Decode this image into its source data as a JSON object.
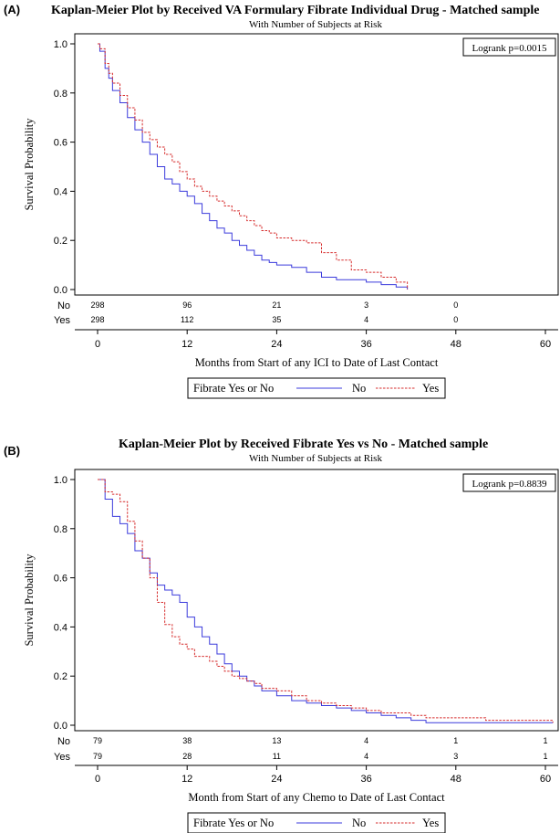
{
  "chart_data": [
    {
      "type": "line",
      "panel_label": "(A)",
      "title": "Kaplan-Meier Plot by Received VA Formulary Fibrate Individual Drug - Matched sample",
      "subtitle": "With Number of Subjects at Risk",
      "xlabel": "Months from Start of any ICI to Date of Last Contact",
      "ylabel": "Survival Probability",
      "xlim": [
        0,
        60
      ],
      "ylim": [
        0,
        1
      ],
      "xticks": [
        "0",
        "12",
        "24",
        "36",
        "48",
        "60"
      ],
      "yticks": [
        "0.0",
        "0.2",
        "0.4",
        "0.6",
        "0.8",
        "1.0"
      ],
      "annotation": "Logrank p=0.0015",
      "legend": {
        "title": "Fibrate Yes or No",
        "entries": [
          "No",
          "Yes"
        ]
      },
      "risk_table": {
        "rows": [
          {
            "label": "No",
            "values": [
              "298",
              "96",
              "21",
              "3",
              "0"
            ]
          },
          {
            "label": "Yes",
            "values": [
              "298",
              "112",
              "35",
              "4",
              "0"
            ]
          }
        ]
      },
      "series": [
        {
          "name": "No",
          "color": "#3b3bdc",
          "dash": "solid",
          "x": [
            0,
            0.3,
            1,
            1.5,
            2,
            3,
            4,
            5,
            6,
            7,
            8,
            9,
            10,
            11,
            12,
            13,
            14,
            15,
            16,
            17,
            18,
            19,
            20,
            21,
            22,
            23,
            24,
            26,
            28,
            30,
            32,
            34,
            36,
            38,
            40,
            41.5
          ],
          "y": [
            1.0,
            0.97,
            0.9,
            0.86,
            0.81,
            0.76,
            0.7,
            0.65,
            0.6,
            0.55,
            0.5,
            0.45,
            0.43,
            0.4,
            0.38,
            0.35,
            0.31,
            0.28,
            0.25,
            0.23,
            0.2,
            0.18,
            0.16,
            0.14,
            0.12,
            0.11,
            0.1,
            0.09,
            0.07,
            0.05,
            0.04,
            0.04,
            0.03,
            0.02,
            0.01,
            0.0
          ]
        },
        {
          "name": "Yes",
          "color": "#d62d2d",
          "dash": "dashed",
          "x": [
            0,
            0.3,
            1,
            1.5,
            2,
            3,
            4,
            5,
            6,
            7,
            8,
            9,
            10,
            11,
            12,
            13,
            14,
            15,
            16,
            17,
            18,
            19,
            20,
            21,
            22,
            23,
            24,
            26,
            28,
            30,
            32,
            34,
            36,
            38,
            40,
            41.5
          ],
          "y": [
            1.0,
            0.98,
            0.92,
            0.88,
            0.84,
            0.79,
            0.74,
            0.69,
            0.64,
            0.61,
            0.58,
            0.55,
            0.52,
            0.48,
            0.45,
            0.42,
            0.4,
            0.38,
            0.36,
            0.34,
            0.32,
            0.3,
            0.28,
            0.26,
            0.24,
            0.23,
            0.21,
            0.2,
            0.19,
            0.15,
            0.12,
            0.08,
            0.07,
            0.05,
            0.03,
            0.0
          ]
        }
      ]
    },
    {
      "type": "line",
      "panel_label": "(B)",
      "title": "Kaplan-Meier Plot by Received Fibrate Yes vs No - Matched sample",
      "subtitle": "With Number of Subjects at Risk",
      "xlabel": "Month from Start of any Chemo to Date of Last Contact",
      "ylabel": "Survival Probability",
      "xlim": [
        0,
        60
      ],
      "ylim": [
        0,
        1
      ],
      "xticks": [
        "0",
        "12",
        "24",
        "36",
        "48",
        "60"
      ],
      "yticks": [
        "0.0",
        "0.2",
        "0.4",
        "0.6",
        "0.8",
        "1.0"
      ],
      "annotation": "Logrank p=0.8839",
      "legend": {
        "title": "Fibrate Yes or No",
        "entries": [
          "No",
          "Yes"
        ]
      },
      "risk_table": {
        "rows": [
          {
            "label": "No",
            "values": [
              "79",
              "38",
              "13",
              "4",
              "1",
              "1"
            ]
          },
          {
            "label": "Yes",
            "values": [
              "79",
              "28",
              "11",
              "4",
              "3",
              "1"
            ]
          }
        ]
      },
      "series": [
        {
          "name": "No",
          "color": "#3b3bdc",
          "dash": "solid",
          "x": [
            0,
            1,
            2,
            3,
            4,
            5,
            6,
            7,
            8,
            9,
            10,
            11,
            12,
            13,
            14,
            15,
            16,
            17,
            18,
            19,
            20,
            21,
            22,
            24,
            26,
            28,
            30,
            32,
            34,
            36,
            38,
            40,
            42,
            44,
            52,
            61
          ],
          "y": [
            1.0,
            0.92,
            0.85,
            0.82,
            0.78,
            0.71,
            0.68,
            0.62,
            0.57,
            0.55,
            0.53,
            0.5,
            0.44,
            0.4,
            0.36,
            0.33,
            0.29,
            0.25,
            0.22,
            0.2,
            0.18,
            0.16,
            0.14,
            0.12,
            0.1,
            0.09,
            0.08,
            0.07,
            0.06,
            0.05,
            0.04,
            0.03,
            0.02,
            0.01,
            0.01,
            0.01
          ]
        },
        {
          "name": "Yes",
          "color": "#d62d2d",
          "dash": "dashed",
          "x": [
            0,
            1,
            2,
            3,
            4,
            5,
            6,
            7,
            8,
            9,
            10,
            11,
            12,
            13,
            14,
            15,
            16,
            17,
            18,
            19,
            20,
            21,
            22,
            24,
            26,
            28,
            30,
            32,
            34,
            36,
            38,
            40,
            42,
            44,
            52,
            61
          ],
          "y": [
            1.0,
            0.95,
            0.94,
            0.91,
            0.83,
            0.75,
            0.68,
            0.6,
            0.5,
            0.41,
            0.36,
            0.33,
            0.31,
            0.28,
            0.28,
            0.26,
            0.24,
            0.22,
            0.2,
            0.19,
            0.18,
            0.17,
            0.15,
            0.14,
            0.12,
            0.1,
            0.09,
            0.08,
            0.07,
            0.06,
            0.05,
            0.05,
            0.04,
            0.03,
            0.02,
            0.01
          ]
        }
      ]
    }
  ]
}
